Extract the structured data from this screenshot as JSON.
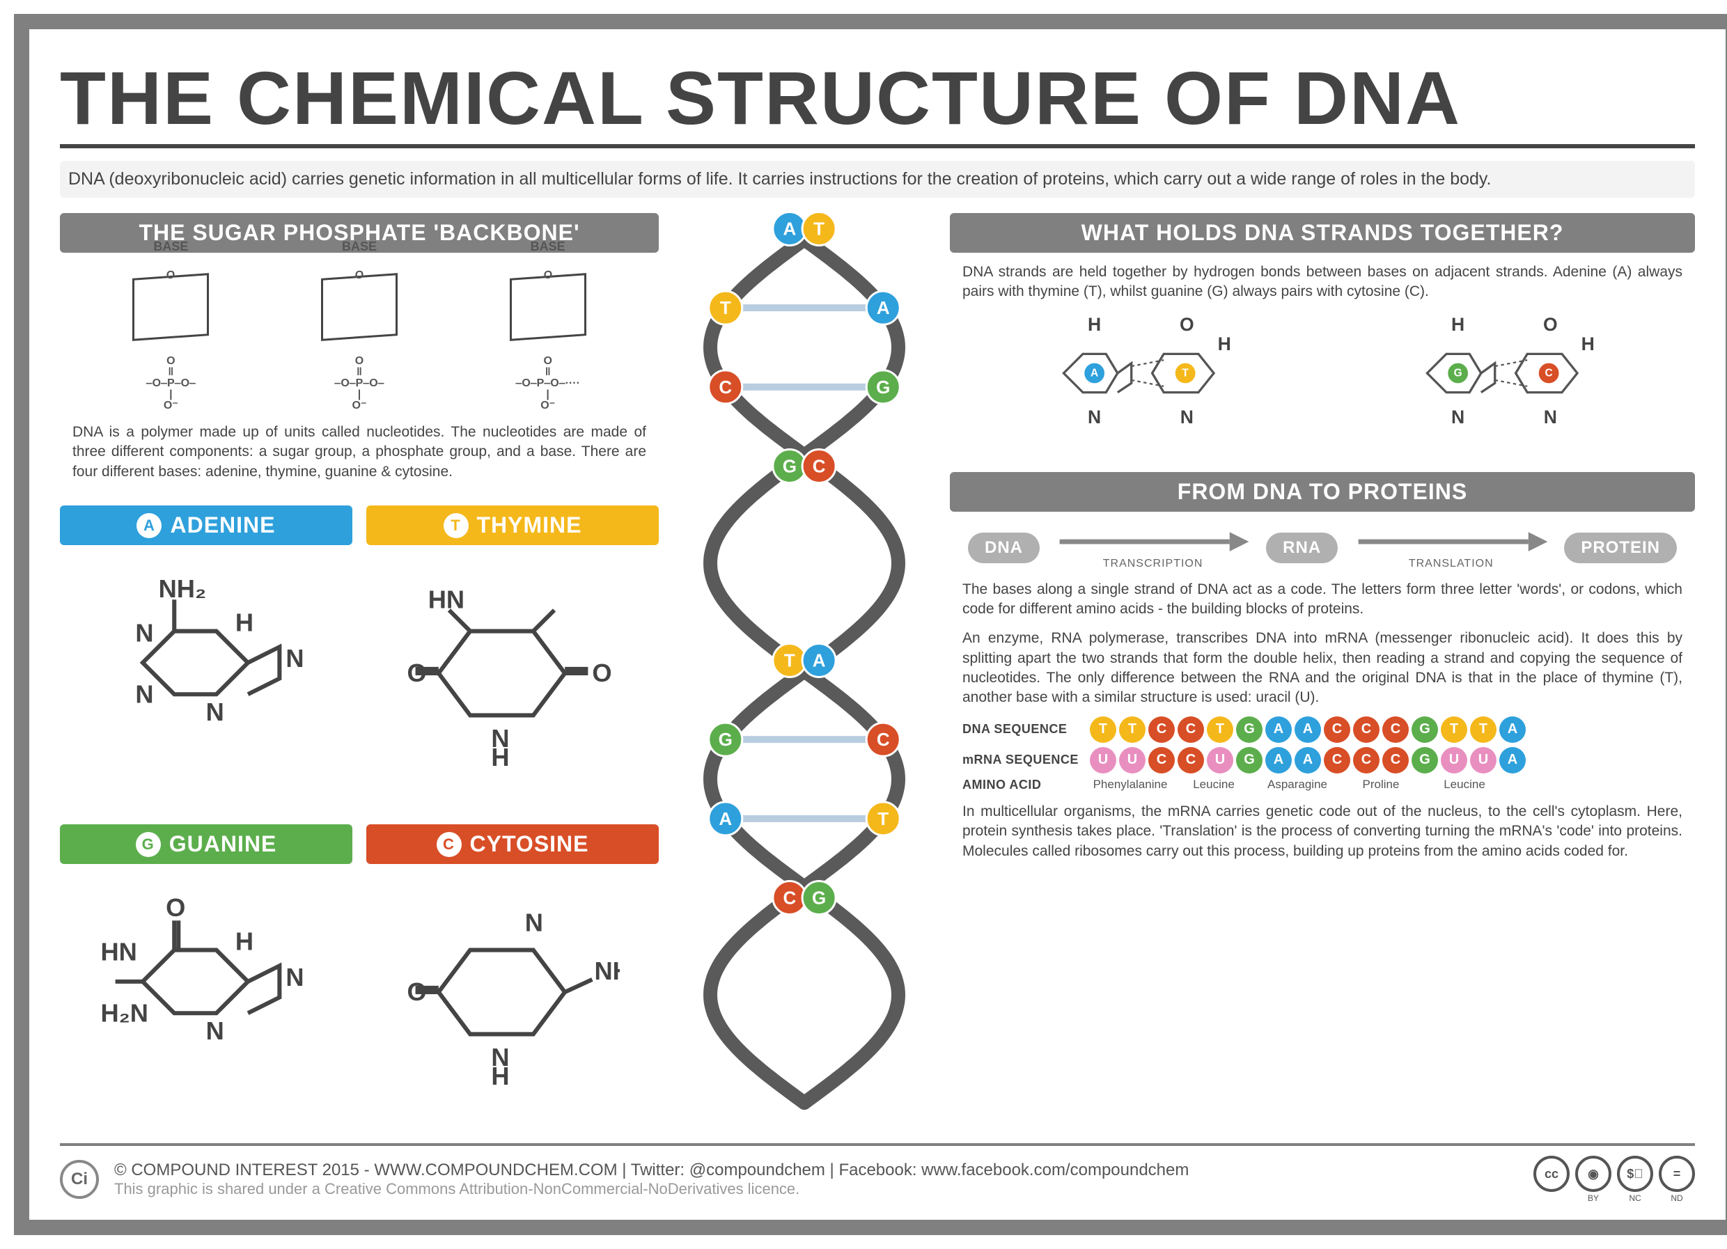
{
  "title": "THE CHEMICAL STRUCTURE OF DNA",
  "subtitle": "DNA (deoxyribonucleic acid) carries genetic information in all multicellular forms of life. It carries instructions for the creation of proteins, which carry out a wide range of roles in the body.",
  "colors": {
    "frame": "#808080",
    "text": "#444444",
    "subtitle_bg": "#f3f3f3",
    "helix_strand": "#5a5a5a",
    "rung": "#b9cde0",
    "adenine": "#2ea0dc",
    "thymine": "#f5b81b",
    "guanine": "#5cae4c",
    "cytosine": "#d84e27",
    "uracil": "#e98fc0",
    "pill_bg": "#b0b0b0"
  },
  "backbone": {
    "header": "THE SUGAR PHOSPHATE 'BACKBONE'",
    "base_label": "BASE",
    "caption": "DNA is a polymer made up of units called nucleotides. The nucleotides are made of three different components: a sugar group, a phosphate group, and a base. There are four different bases: adenine, thymine, guanine & cytosine."
  },
  "bases": [
    {
      "letter": "A",
      "name": "ADENINE",
      "color_key": "adenine"
    },
    {
      "letter": "T",
      "name": "THYMINE",
      "color_key": "thymine"
    },
    {
      "letter": "G",
      "name": "GUANINE",
      "color_key": "guanine"
    },
    {
      "letter": "C",
      "name": "CYTOSINE",
      "color_key": "cytosine"
    }
  ],
  "helix_rungs": [
    {
      "left": "A",
      "right": "T"
    },
    {
      "left": "T",
      "right": "A"
    },
    {
      "left": "C",
      "right": "G"
    },
    {
      "left": "G",
      "right": "C"
    },
    {
      "left": "T",
      "right": "A"
    },
    {
      "left": "G",
      "right": "C"
    },
    {
      "left": "A",
      "right": "T"
    },
    {
      "left": "C",
      "right": "G"
    }
  ],
  "holds": {
    "header": "WHAT HOLDS DNA STRANDS TOGETHER?",
    "caption": "DNA strands are held together by hydrogen bonds between bases on adjacent strands. Adenine (A) always pairs with thymine (T), whilst guanine (G) always pairs with cytosine (C).",
    "pairs": [
      {
        "left": "A",
        "right": "T",
        "left_color": "adenine",
        "right_color": "thymine"
      },
      {
        "left": "G",
        "right": "C",
        "left_color": "guanine",
        "right_color": "cytosine"
      }
    ]
  },
  "proteins": {
    "header": "FROM DNA TO PROTEINS",
    "flow": {
      "dna": "DNA",
      "rna": "RNA",
      "protein": "PROTEIN",
      "step1": "TRANSCRIPTION",
      "step2": "TRANSLATION"
    },
    "para1": "The bases along a single strand of DNA act as a code. The letters form three letter 'words', or codons, which code for different amino acids - the building blocks of proteins.",
    "para2": "An enzyme, RNA polymerase, transcribes DNA into mRNA (messenger ribonucleic acid). It does this by splitting apart the two strands that form the double helix, then reading a strand and copying the sequence of nucleotides. The only difference between the RNA and the original DNA is that in the place of thymine (T), another base with a similar structure is used: uracil (U).",
    "dna_seq_label": "DNA SEQUENCE",
    "mrna_seq_label": "mRNA SEQUENCE",
    "amino_label": "AMINO ACID",
    "dna_seq": [
      "T",
      "T",
      "C",
      "C",
      "T",
      "G",
      "A",
      "A",
      "C",
      "C",
      "C",
      "G",
      "T",
      "T",
      "A"
    ],
    "mrna_seq": [
      "U",
      "U",
      "C",
      "C",
      "U",
      "G",
      "A",
      "A",
      "C",
      "C",
      "C",
      "G",
      "U",
      "U",
      "A"
    ],
    "amino_acids": [
      "Phenylalanine",
      "Leucine",
      "Asparagine",
      "Proline",
      "Leucine"
    ],
    "para3": "In multicellular organisms, the mRNA carries genetic code out of the nucleus, to the cell's cytoplasm. Here, protein synthesis takes place. 'Translation' is the process of converting turning the mRNA's 'code' into proteins. Molecules called ribosomes carry out this process, building up proteins from the amino acids coded for."
  },
  "footer": {
    "line1": "© COMPOUND INTEREST 2015 - WWW.COMPOUNDCHEM.COM  |  Twitter: @compoundchem  |  Facebook: www.facebook.com/compoundchem",
    "line2": "This graphic is shared under a Creative Commons Attribution-NonCommercial-NoDerivatives licence.",
    "logo": "Ci",
    "cc": [
      "cc",
      "BY",
      "NC",
      "ND"
    ]
  }
}
